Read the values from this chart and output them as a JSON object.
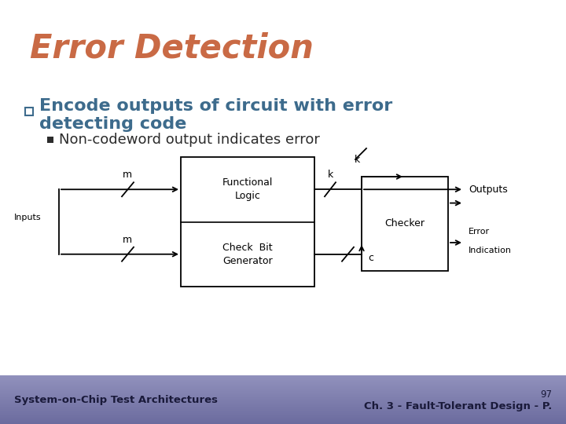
{
  "title": "Error Detection",
  "title_color": "#C96A45",
  "bullet1_line1": "Encode outputs of circuit with error",
  "bullet1_line2": "    detecting code",
  "bullet1_color": "#3D6B8C",
  "subbullet1": "Non-codeword output indicates error",
  "subbullet_color": "#2C2C2C",
  "bg_color": "#FFFFFF",
  "footer_color1": "#7878AA",
  "footer_color2": "#9898CC",
  "footer_left": "System-on-Chip Test Architectures",
  "footer_right": "Ch. 3 - Fault-Tolerant Design - P.",
  "page_num": "97",
  "footer_text_color": "#1a1a3a"
}
